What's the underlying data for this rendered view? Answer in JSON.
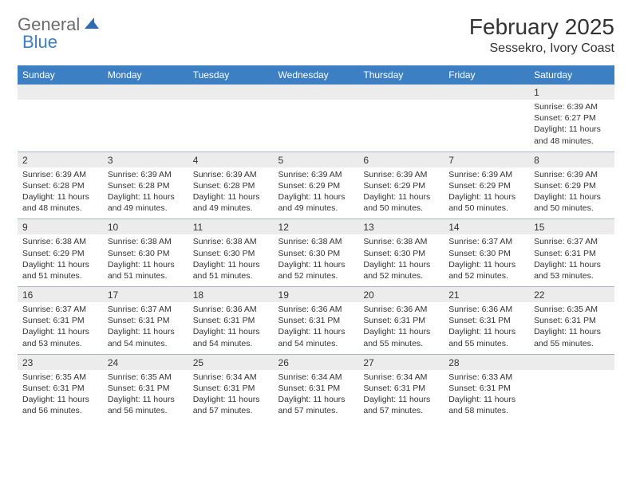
{
  "logo": {
    "general": "General",
    "blue": "Blue"
  },
  "title": "February 2025",
  "location": "Sessekro, Ivory Coast",
  "colors": {
    "header_bg": "#3c7fc2",
    "header_text": "#ffffff",
    "numrow_bg": "#ececec",
    "border": "#aab5c4",
    "text": "#333333",
    "logo_gray": "#6b6b6b",
    "logo_blue": "#3c7fc2"
  },
  "day_names": [
    "Sunday",
    "Monday",
    "Tuesday",
    "Wednesday",
    "Thursday",
    "Friday",
    "Saturday"
  ],
  "weeks": [
    {
      "nums": [
        "",
        "",
        "",
        "",
        "",
        "",
        "1"
      ],
      "cells": [
        null,
        null,
        null,
        null,
        null,
        null,
        {
          "sunrise": "Sunrise: 6:39 AM",
          "sunset": "Sunset: 6:27 PM",
          "daylight": "Daylight: 11 hours and 48 minutes."
        }
      ]
    },
    {
      "nums": [
        "2",
        "3",
        "4",
        "5",
        "6",
        "7",
        "8"
      ],
      "cells": [
        {
          "sunrise": "Sunrise: 6:39 AM",
          "sunset": "Sunset: 6:28 PM",
          "daylight": "Daylight: 11 hours and 48 minutes."
        },
        {
          "sunrise": "Sunrise: 6:39 AM",
          "sunset": "Sunset: 6:28 PM",
          "daylight": "Daylight: 11 hours and 49 minutes."
        },
        {
          "sunrise": "Sunrise: 6:39 AM",
          "sunset": "Sunset: 6:28 PM",
          "daylight": "Daylight: 11 hours and 49 minutes."
        },
        {
          "sunrise": "Sunrise: 6:39 AM",
          "sunset": "Sunset: 6:29 PM",
          "daylight": "Daylight: 11 hours and 49 minutes."
        },
        {
          "sunrise": "Sunrise: 6:39 AM",
          "sunset": "Sunset: 6:29 PM",
          "daylight": "Daylight: 11 hours and 50 minutes."
        },
        {
          "sunrise": "Sunrise: 6:39 AM",
          "sunset": "Sunset: 6:29 PM",
          "daylight": "Daylight: 11 hours and 50 minutes."
        },
        {
          "sunrise": "Sunrise: 6:39 AM",
          "sunset": "Sunset: 6:29 PM",
          "daylight": "Daylight: 11 hours and 50 minutes."
        }
      ]
    },
    {
      "nums": [
        "9",
        "10",
        "11",
        "12",
        "13",
        "14",
        "15"
      ],
      "cells": [
        {
          "sunrise": "Sunrise: 6:38 AM",
          "sunset": "Sunset: 6:29 PM",
          "daylight": "Daylight: 11 hours and 51 minutes."
        },
        {
          "sunrise": "Sunrise: 6:38 AM",
          "sunset": "Sunset: 6:30 PM",
          "daylight": "Daylight: 11 hours and 51 minutes."
        },
        {
          "sunrise": "Sunrise: 6:38 AM",
          "sunset": "Sunset: 6:30 PM",
          "daylight": "Daylight: 11 hours and 51 minutes."
        },
        {
          "sunrise": "Sunrise: 6:38 AM",
          "sunset": "Sunset: 6:30 PM",
          "daylight": "Daylight: 11 hours and 52 minutes."
        },
        {
          "sunrise": "Sunrise: 6:38 AM",
          "sunset": "Sunset: 6:30 PM",
          "daylight": "Daylight: 11 hours and 52 minutes."
        },
        {
          "sunrise": "Sunrise: 6:37 AM",
          "sunset": "Sunset: 6:30 PM",
          "daylight": "Daylight: 11 hours and 52 minutes."
        },
        {
          "sunrise": "Sunrise: 6:37 AM",
          "sunset": "Sunset: 6:31 PM",
          "daylight": "Daylight: 11 hours and 53 minutes."
        }
      ]
    },
    {
      "nums": [
        "16",
        "17",
        "18",
        "19",
        "20",
        "21",
        "22"
      ],
      "cells": [
        {
          "sunrise": "Sunrise: 6:37 AM",
          "sunset": "Sunset: 6:31 PM",
          "daylight": "Daylight: 11 hours and 53 minutes."
        },
        {
          "sunrise": "Sunrise: 6:37 AM",
          "sunset": "Sunset: 6:31 PM",
          "daylight": "Daylight: 11 hours and 54 minutes."
        },
        {
          "sunrise": "Sunrise: 6:36 AM",
          "sunset": "Sunset: 6:31 PM",
          "daylight": "Daylight: 11 hours and 54 minutes."
        },
        {
          "sunrise": "Sunrise: 6:36 AM",
          "sunset": "Sunset: 6:31 PM",
          "daylight": "Daylight: 11 hours and 54 minutes."
        },
        {
          "sunrise": "Sunrise: 6:36 AM",
          "sunset": "Sunset: 6:31 PM",
          "daylight": "Daylight: 11 hours and 55 minutes."
        },
        {
          "sunrise": "Sunrise: 6:36 AM",
          "sunset": "Sunset: 6:31 PM",
          "daylight": "Daylight: 11 hours and 55 minutes."
        },
        {
          "sunrise": "Sunrise: 6:35 AM",
          "sunset": "Sunset: 6:31 PM",
          "daylight": "Daylight: 11 hours and 55 minutes."
        }
      ]
    },
    {
      "nums": [
        "23",
        "24",
        "25",
        "26",
        "27",
        "28",
        ""
      ],
      "cells": [
        {
          "sunrise": "Sunrise: 6:35 AM",
          "sunset": "Sunset: 6:31 PM",
          "daylight": "Daylight: 11 hours and 56 minutes."
        },
        {
          "sunrise": "Sunrise: 6:35 AM",
          "sunset": "Sunset: 6:31 PM",
          "daylight": "Daylight: 11 hours and 56 minutes."
        },
        {
          "sunrise": "Sunrise: 6:34 AM",
          "sunset": "Sunset: 6:31 PM",
          "daylight": "Daylight: 11 hours and 57 minutes."
        },
        {
          "sunrise": "Sunrise: 6:34 AM",
          "sunset": "Sunset: 6:31 PM",
          "daylight": "Daylight: 11 hours and 57 minutes."
        },
        {
          "sunrise": "Sunrise: 6:34 AM",
          "sunset": "Sunset: 6:31 PM",
          "daylight": "Daylight: 11 hours and 57 minutes."
        },
        {
          "sunrise": "Sunrise: 6:33 AM",
          "sunset": "Sunset: 6:31 PM",
          "daylight": "Daylight: 11 hours and 58 minutes."
        },
        null
      ]
    }
  ]
}
